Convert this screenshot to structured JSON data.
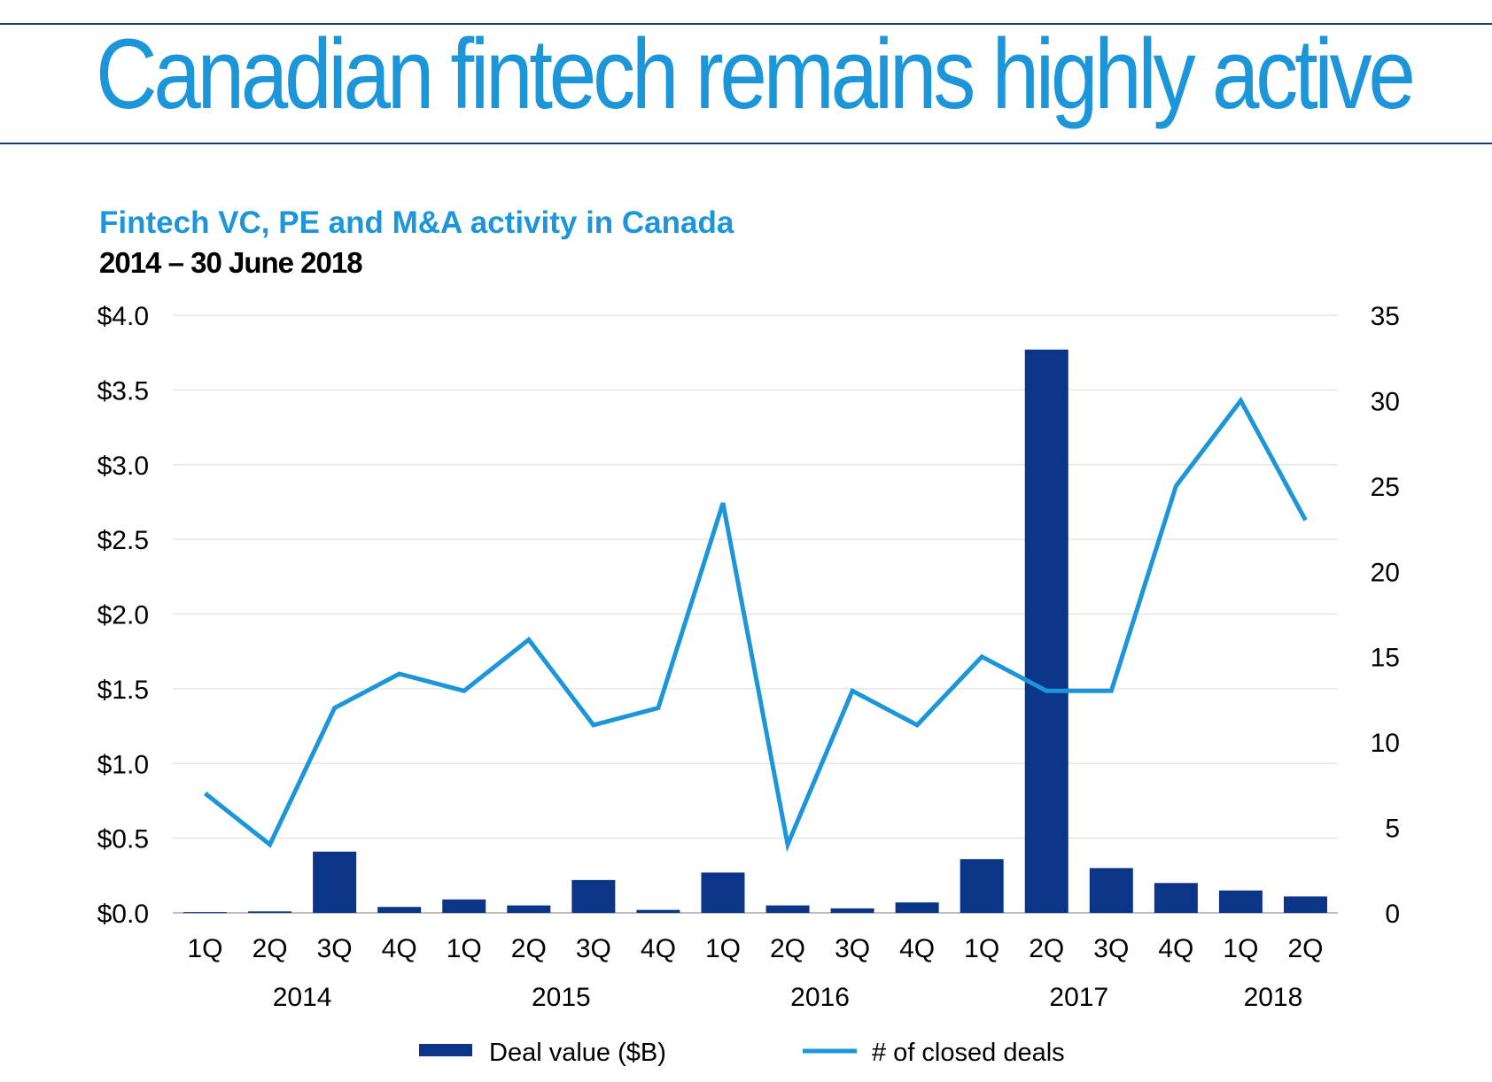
{
  "page": {
    "heading": "Canadian fintech remains highly active"
  },
  "chart_data": {
    "type": "bar+line",
    "title": "Fintech VC, PE and M&A activity in Canada",
    "subtitle": "2014 – 30 June 2018",
    "categories": [
      "1Q",
      "2Q",
      "3Q",
      "4Q",
      "1Q",
      "2Q",
      "3Q",
      "4Q",
      "1Q",
      "2Q",
      "3Q",
      "4Q",
      "1Q",
      "2Q",
      "3Q",
      "4Q",
      "1Q",
      "2Q"
    ],
    "year_groups": [
      {
        "label": "2014",
        "start": 0,
        "end": 3
      },
      {
        "label": "2015",
        "start": 4,
        "end": 7
      },
      {
        "label": "2016",
        "start": 8,
        "end": 11
      },
      {
        "label": "2017",
        "start": 12,
        "end": 15
      },
      {
        "label": "2018",
        "start": 16,
        "end": 17
      }
    ],
    "series": [
      {
        "name": "Deal value ($B)",
        "kind": "bar",
        "axis": "left",
        "color": "#0b3688",
        "values": [
          0.005,
          0.01,
          0.41,
          0.04,
          0.09,
          0.05,
          0.22,
          0.02,
          0.27,
          0.05,
          0.03,
          0.07,
          0.36,
          3.77,
          0.3,
          0.2,
          0.15,
          0.11
        ]
      },
      {
        "name": "# of closed deals",
        "kind": "line",
        "axis": "right",
        "color": "#1c96d8",
        "values": [
          7,
          4,
          12,
          14,
          13,
          16,
          11,
          12,
          24,
          4,
          13,
          11,
          15,
          13,
          13,
          25,
          30,
          23
        ]
      }
    ],
    "y_left": {
      "min": 0,
      "max": 4.0,
      "ticks": [
        "$0.0",
        "$0.5",
        "$1.0",
        "$1.5",
        "$2.0",
        "$2.5",
        "$3.0",
        "$3.5",
        "$4.0"
      ]
    },
    "y_right": {
      "min": 0,
      "max": 35,
      "ticks": [
        "0",
        "5",
        "10",
        "15",
        "20",
        "25",
        "30",
        "35"
      ]
    },
    "grid": "horizontal",
    "legend_position": "bottom"
  }
}
